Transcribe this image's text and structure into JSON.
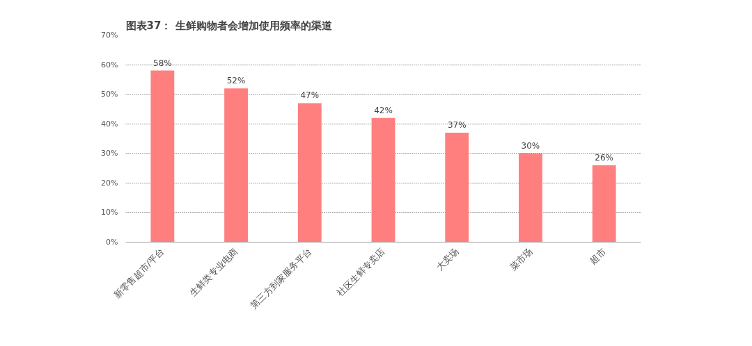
{
  "chart_data": {
    "type": "bar",
    "title": "图表37：  生鲜购物者会增加使用频率的渠道",
    "categories": [
      "新零售超市/平台",
      "生鲜类专业电商",
      "第三方到家服务平台",
      "社区生鲜专卖店",
      "大卖场",
      "菜市场",
      "超市"
    ],
    "values": [
      58,
      52,
      47,
      42,
      37,
      30,
      26
    ],
    "value_labels": [
      "58%",
      "52%",
      "47%",
      "42%",
      "37%",
      "30%",
      "26%"
    ],
    "color": "#ff7f7f",
    "ylim": [
      0,
      70
    ],
    "yticks": [
      {
        "value": 0,
        "label": "0%"
      },
      {
        "value": 10,
        "label": "10%"
      },
      {
        "value": 20,
        "label": "20%"
      },
      {
        "value": 30,
        "label": "30%"
      },
      {
        "value": 40,
        "label": "40%"
      },
      {
        "value": 50,
        "label": "50%"
      },
      {
        "value": 60,
        "label": "60%"
      },
      {
        "value": 70,
        "label": "70%"
      }
    ],
    "grid": "y"
  }
}
